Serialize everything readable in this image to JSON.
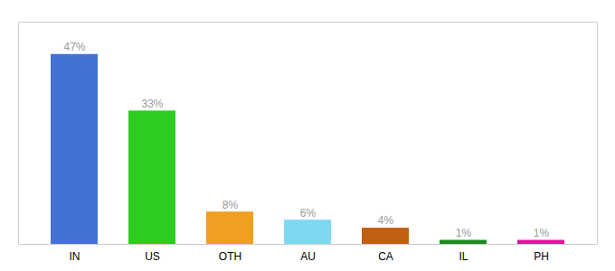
{
  "chart_data": {
    "type": "bar",
    "categories": [
      "IN",
      "US",
      "OTH",
      "AU",
      "CA",
      "IL",
      "PH"
    ],
    "values": [
      47,
      33,
      8,
      6,
      4,
      1,
      1
    ],
    "value_labels": [
      "47%",
      "33%",
      "8%",
      "6%",
      "4%",
      "1%",
      "1%"
    ],
    "colors": [
      "#4472d4",
      "#2ecc1e",
      "#f0a020",
      "#7dd8f0",
      "#c06010",
      "#1a8c1a",
      "#e8109e"
    ],
    "ylim": [
      0,
      55
    ],
    "data_labels": true,
    "tick_labels": "x",
    "grid": false
  }
}
